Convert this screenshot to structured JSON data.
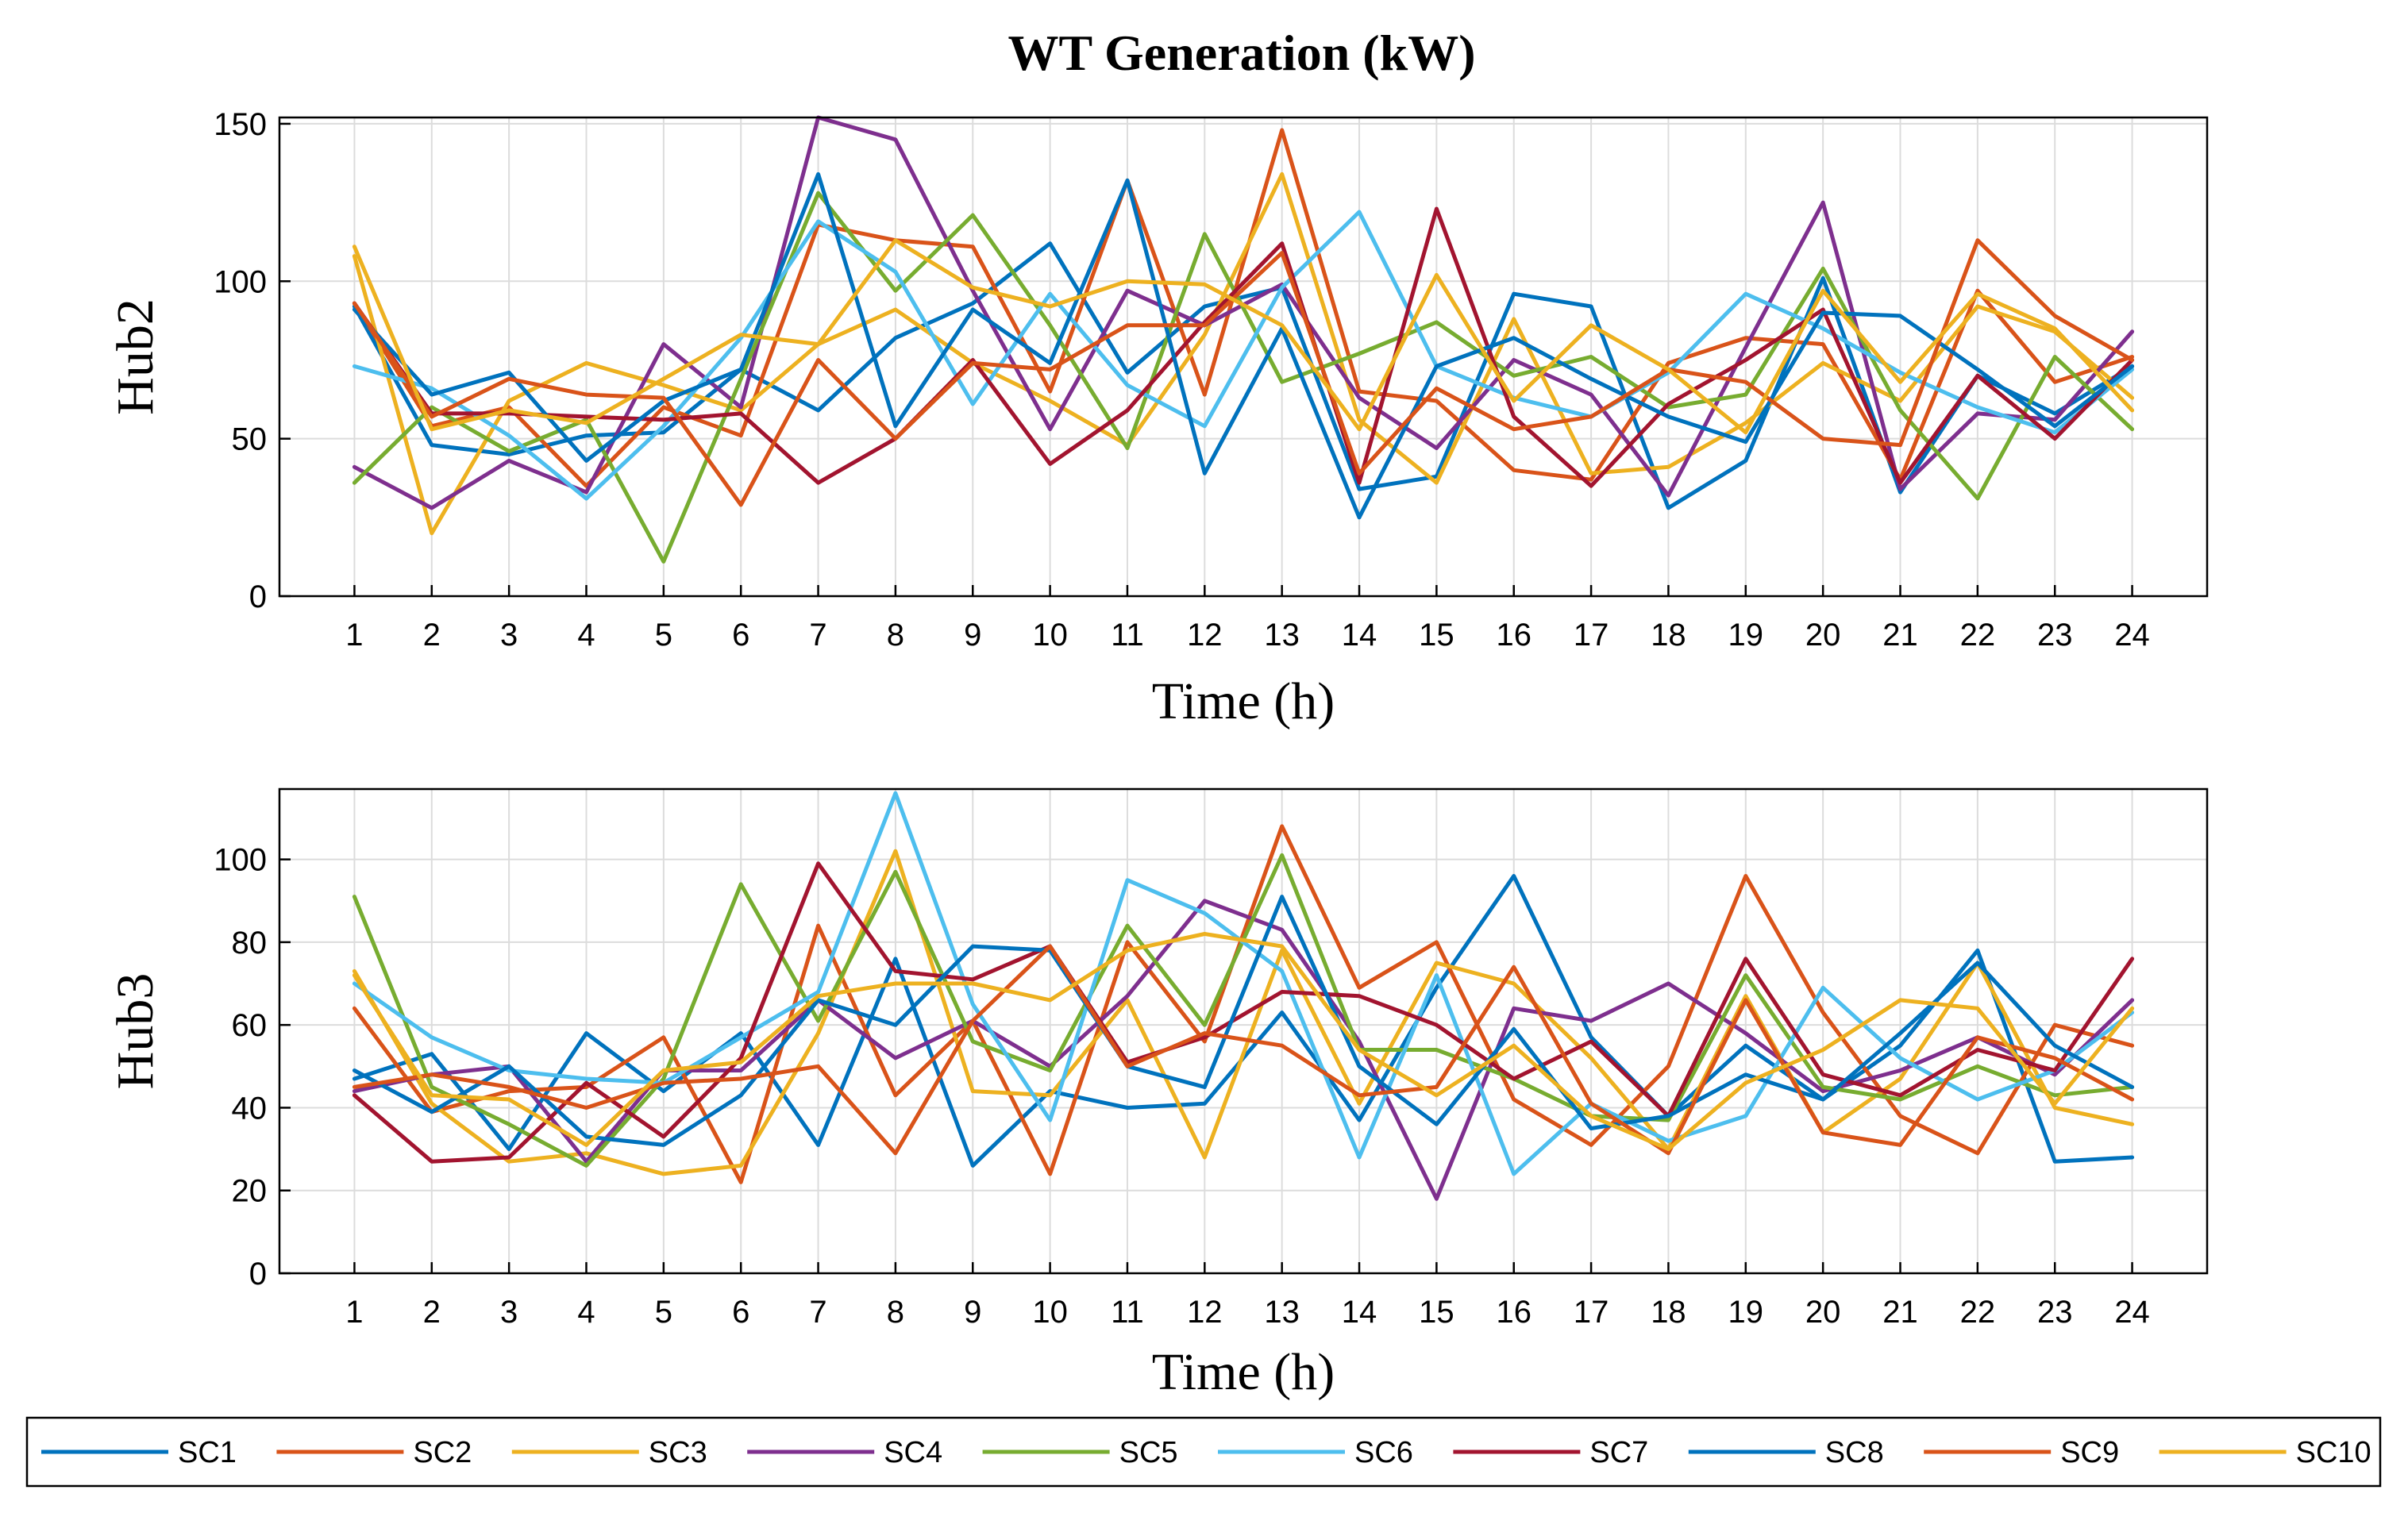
{
  "title": "WT Generation (kW)",
  "chart_data": [
    {
      "type": "line",
      "ylabel": "Hub2",
      "xlabel": "Time (h)",
      "x": [
        1,
        2,
        3,
        4,
        5,
        6,
        7,
        8,
        9,
        10,
        11,
        12,
        13,
        14,
        15,
        16,
        17,
        18,
        19,
        20,
        21,
        22,
        23,
        24
      ],
      "ylim": [
        0,
        152
      ],
      "yticks": [
        0,
        50,
        100,
        150
      ],
      "grid": true,
      "series": [
        {
          "name": "SC1",
          "values": [
            92,
            48,
            45,
            51,
            52,
            72,
            59,
            82,
            93,
            112,
            71,
            92,
            98,
            34,
            38,
            96,
            92,
            28,
            43,
            101,
            33,
            70,
            58,
            73
          ]
        },
        {
          "name": "SC2",
          "values": [
            93,
            54,
            60,
            35,
            60,
            51,
            118,
            113,
            111,
            65,
            132,
            64,
            148,
            65,
            62,
            40,
            37,
            74,
            82,
            80,
            37,
            97,
            68,
            76
          ]
        },
        {
          "name": "SC3",
          "values": [
            108,
            20,
            62,
            74,
            67,
            59,
            80,
            91,
            74,
            62,
            48,
            83,
            134,
            56,
            36,
            88,
            39,
            41,
            55,
            74,
            62,
            92,
            84,
            63
          ]
        },
        {
          "name": "SC4",
          "values": [
            41,
            28,
            43,
            33,
            80,
            60,
            152,
            145,
            97,
            53,
            97,
            86,
            99,
            63,
            47,
            75,
            64,
            32,
            79,
            125,
            34,
            58,
            56,
            84
          ]
        },
        {
          "name": "SC5",
          "values": [
            36,
            60,
            46,
            56,
            11,
            69,
            128,
            97,
            121,
            86,
            47,
            115,
            68,
            77,
            87,
            70,
            76,
            60,
            64,
            104,
            59,
            31,
            76,
            53
          ]
        },
        {
          "name": "SC6",
          "values": [
            73,
            66,
            51,
            31,
            54,
            82,
            119,
            103,
            61,
            96,
            67,
            54,
            98,
            122,
            73,
            63,
            57,
            71,
            96,
            85,
            71,
            60,
            52,
            72
          ]
        },
        {
          "name": "SC7",
          "values": [
            93,
            58,
            58,
            57,
            56,
            58,
            36,
            50,
            75,
            42,
            59,
            87,
            112,
            36,
            123,
            57,
            35,
            61,
            75,
            91,
            36,
            70,
            50,
            75
          ]
        },
        {
          "name": "SC8",
          "values": [
            91,
            64,
            71,
            43,
            62,
            72,
            134,
            54,
            91,
            74,
            132,
            39,
            85,
            25,
            73,
            82,
            69,
            57,
            49,
            90,
            89,
            72,
            54,
            73
          ]
        },
        {
          "name": "SC9",
          "values": [
            93,
            57,
            69,
            64,
            63,
            29,
            75,
            50,
            74,
            72,
            86,
            86,
            109,
            39,
            66,
            53,
            57,
            72,
            68,
            50,
            48,
            113,
            89,
            75
          ]
        },
        {
          "name": "SC10",
          "values": [
            111,
            53,
            59,
            55,
            69,
            83,
            80,
            113,
            98,
            92,
            100,
            99,
            86,
            53,
            102,
            62,
            86,
            72,
            52,
            97,
            68,
            96,
            85,
            59
          ]
        }
      ]
    },
    {
      "type": "line",
      "ylabel": "Hub3",
      "xlabel": "Time (h)",
      "x": [
        1,
        2,
        3,
        4,
        5,
        6,
        7,
        8,
        9,
        10,
        11,
        12,
        13,
        14,
        15,
        16,
        17,
        18,
        19,
        20,
        21,
        22,
        23,
        24
      ],
      "ylim": [
        0,
        117
      ],
      "yticks": [
        0,
        20,
        40,
        60,
        80,
        100
      ],
      "grid": true,
      "series": [
        {
          "name": "SC1",
          "values": [
            47,
            53,
            30,
            58,
            44,
            58,
            31,
            76,
            26,
            44,
            40,
            41,
            63,
            37,
            69,
            96,
            57,
            38,
            55,
            42,
            55,
            78,
            27,
            28
          ]
        },
        {
          "name": "SC2",
          "values": [
            64,
            39,
            44,
            45,
            57,
            22,
            84,
            43,
            61,
            24,
            80,
            56,
            108,
            69,
            80,
            42,
            31,
            50,
            96,
            63,
            38,
            29,
            60,
            55
          ]
        },
        {
          "name": "SC3",
          "values": [
            73,
            41,
            27,
            29,
            24,
            26,
            58,
            102,
            44,
            43,
            66,
            28,
            78,
            41,
            75,
            70,
            52,
            30,
            67,
            34,
            47,
            75,
            40,
            36
          ]
        },
        {
          "name": "SC4",
          "values": [
            44,
            48,
            50,
            27,
            49,
            49,
            66,
            52,
            61,
            50,
            67,
            90,
            83,
            56,
            18,
            64,
            61,
            70,
            58,
            44,
            49,
            57,
            48,
            66
          ]
        },
        {
          "name": "SC5",
          "values": [
            91,
            45,
            36,
            26,
            47,
            94,
            61,
            97,
            56,
            49,
            84,
            60,
            101,
            54,
            54,
            47,
            38,
            37,
            72,
            45,
            42,
            50,
            43,
            45
          ]
        },
        {
          "name": "SC6",
          "values": [
            70,
            57,
            49,
            47,
            46,
            57,
            68,
            116,
            65,
            37,
            95,
            87,
            73,
            28,
            72,
            24,
            41,
            32,
            38,
            69,
            52,
            42,
            49,
            63
          ]
        },
        {
          "name": "SC7",
          "values": [
            43,
            27,
            28,
            46,
            33,
            52,
            99,
            73,
            71,
            79,
            51,
            57,
            68,
            67,
            60,
            47,
            56,
            38,
            76,
            48,
            43,
            54,
            49,
            76
          ]
        },
        {
          "name": "SC8",
          "values": [
            49,
            39,
            50,
            33,
            31,
            43,
            66,
            60,
            79,
            78,
            50,
            45,
            91,
            50,
            36,
            59,
            35,
            38,
            48,
            42,
            58,
            75,
            55,
            45
          ]
        },
        {
          "name": "SC9",
          "values": [
            45,
            48,
            45,
            40,
            46,
            47,
            50,
            29,
            61,
            79,
            50,
            58,
            55,
            43,
            45,
            74,
            41,
            29,
            66,
            34,
            31,
            57,
            52,
            42
          ]
        },
        {
          "name": "SC10",
          "values": [
            72,
            43,
            42,
            31,
            49,
            51,
            67,
            70,
            70,
            66,
            78,
            82,
            79,
            54,
            43,
            55,
            38,
            30,
            46,
            54,
            66,
            64,
            41,
            64
          ]
        }
      ]
    }
  ],
  "legend": {
    "placement": "bottom",
    "colors": [
      "#0072BD",
      "#D95319",
      "#EDB120",
      "#7E2F8E",
      "#77AC30",
      "#4DBEEE",
      "#A2142F",
      "#0072BD",
      "#D95319",
      "#EDB120"
    ]
  }
}
